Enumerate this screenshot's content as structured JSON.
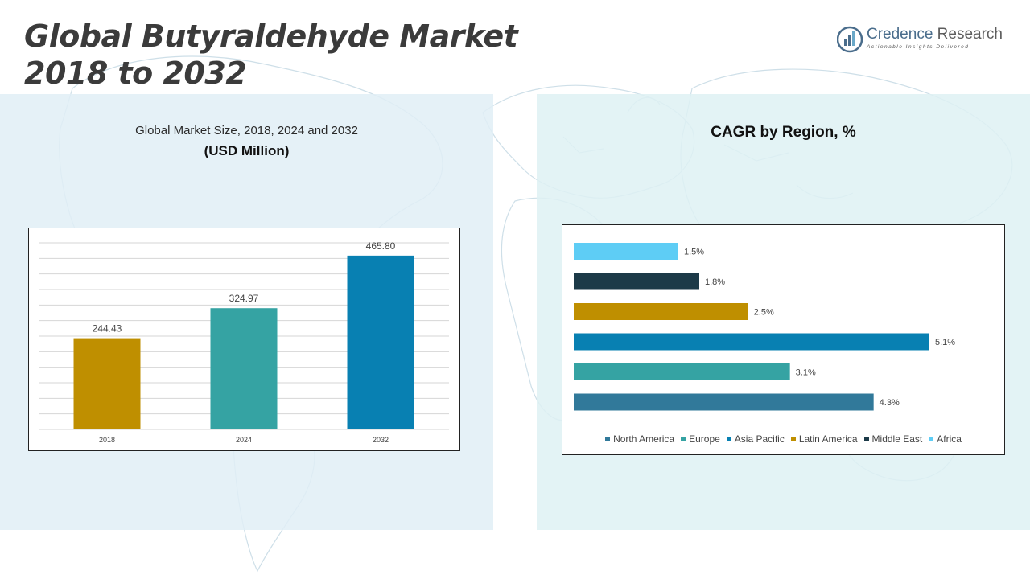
{
  "header": {
    "title_line1": "Global Butyraldehyde Market",
    "title_line2": "2018 to 2032"
  },
  "logo": {
    "icon": "credence-logo-icon",
    "name_part1": "Credence",
    "name_part2": " Research",
    "tagline": "Actionable Insights Delivered"
  },
  "left_panel": {
    "subtitle": "Global Market Size, 2018, 2024 and 2032",
    "unit": "(USD Million)"
  },
  "right_panel": {
    "title": "CAGR by Region, %"
  },
  "colors": {
    "north_america": "#31799a",
    "europe": "#35a3a3",
    "asia_pacific": "#0880b2",
    "latin_america": "#bf8f00",
    "middle_east": "#1c3a48",
    "africa": "#5ecdf5"
  },
  "chart_data": [
    {
      "type": "bar",
      "categories": [
        "2018",
        "2024",
        "2032"
      ],
      "values": [
        244.43,
        324.97,
        465.8
      ],
      "value_labels": [
        "244.43",
        "324.97",
        "465.80"
      ],
      "colors": [
        "#bf8f00",
        "#35a3a3",
        "#0880b2"
      ],
      "ylim": [
        0,
        500
      ],
      "grid": true
    },
    {
      "type": "bar",
      "orientation": "horizontal",
      "categories": [
        "Africa",
        "Middle East",
        "Latin America",
        "Asia Pacific",
        "Europe",
        "North America"
      ],
      "values": [
        1.5,
        1.8,
        2.5,
        5.1,
        3.1,
        4.3
      ],
      "value_labels": [
        "1.5%",
        "1.8%",
        "2.5%",
        "5.1%",
        "3.1%",
        "4.3%"
      ],
      "colors": [
        "#5ecdf5",
        "#1c3a48",
        "#bf8f00",
        "#0880b2",
        "#35a3a3",
        "#31799a"
      ],
      "legend": [
        "North America",
        "Europe",
        "Asia Pacific",
        "Latin America",
        "Middle East",
        "Africa"
      ],
      "legend_colors": [
        "#31799a",
        "#35a3a3",
        "#0880b2",
        "#bf8f00",
        "#1c3a48",
        "#5ecdf5"
      ],
      "legend_position": "bottom",
      "xlim": [
        0,
        5.1
      ],
      "grid": false
    }
  ]
}
